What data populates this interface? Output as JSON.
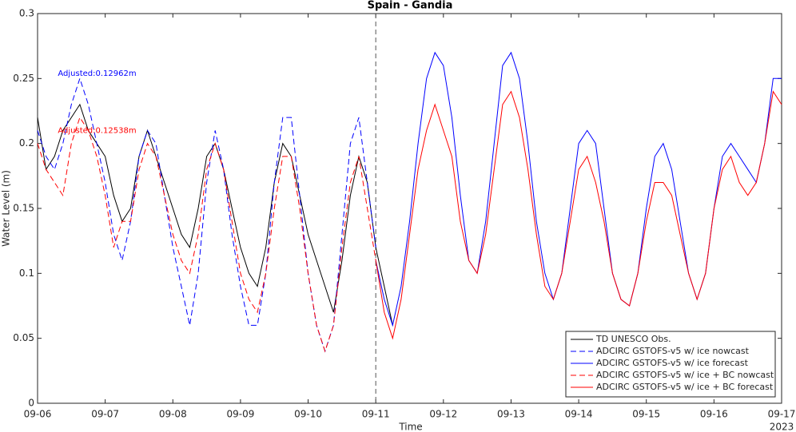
{
  "chart_data": {
    "type": "line",
    "title": "Spain - Gandia",
    "x_label": "Time",
    "y_label": "Water Level (m)",
    "x_year_label": "2023",
    "xlim": [
      0,
      11
    ],
    "ylim": [
      0,
      0.3
    ],
    "xticks": [
      {
        "value": 0,
        "label": "09-06"
      },
      {
        "value": 1,
        "label": "09-07"
      },
      {
        "value": 2,
        "label": "09-08"
      },
      {
        "value": 3,
        "label": "09-09"
      },
      {
        "value": 4,
        "label": "09-10"
      },
      {
        "value": 5,
        "label": "09-11"
      },
      {
        "value": 6,
        "label": "09-12"
      },
      {
        "value": 7,
        "label": "09-13"
      },
      {
        "value": 8,
        "label": "09-14"
      },
      {
        "value": 9,
        "label": "09-15"
      },
      {
        "value": 10,
        "label": "09-16"
      },
      {
        "value": 11,
        "label": "09-17"
      }
    ],
    "yticks": [
      0,
      0.05,
      0.1,
      0.15,
      0.2,
      0.25,
      0.3
    ],
    "grid": false,
    "legend": "lower right",
    "divider_x": 5,
    "annotations": [
      {
        "text": "Adjusted:0.12962m",
        "x": 0.3,
        "y": 0.254,
        "color": "#0000ff"
      },
      {
        "text": "Adjusted:0.12538m",
        "x": 0.3,
        "y": 0.21,
        "color": "#ff0000"
      }
    ],
    "series": [
      {
        "name": "TD UNESCO Obs.",
        "color": "#000000",
        "dash": false,
        "x": [
          0,
          0.125,
          0.25,
          0.375,
          0.5,
          0.625,
          0.75,
          0.875,
          1,
          1.125,
          1.25,
          1.375,
          1.5,
          1.625,
          1.75,
          1.875,
          2,
          2.125,
          2.25,
          2.375,
          2.5,
          2.625,
          2.75,
          2.875,
          3,
          3.125,
          3.25,
          3.375,
          3.5,
          3.625,
          3.75,
          3.875,
          4,
          4.125,
          4.25,
          4.375,
          4.5,
          4.625,
          4.75,
          4.875,
          5,
          5.125,
          5.25
        ],
        "values": [
          0.22,
          0.18,
          0.19,
          0.21,
          0.22,
          0.23,
          0.21,
          0.2,
          0.19,
          0.16,
          0.14,
          0.15,
          0.19,
          0.21,
          0.19,
          0.17,
          0.15,
          0.13,
          0.12,
          0.15,
          0.19,
          0.2,
          0.18,
          0.15,
          0.12,
          0.1,
          0.09,
          0.12,
          0.17,
          0.2,
          0.19,
          0.16,
          0.13,
          0.11,
          0.09,
          0.07,
          0.11,
          0.16,
          0.19,
          0.17,
          0.12,
          0.09,
          0.06
        ]
      },
      {
        "name": "ADCIRC GSTOFS-v5 w/ ice nowcast",
        "color": "#0000ff",
        "dash": true,
        "x": [
          0,
          0.125,
          0.25,
          0.375,
          0.5,
          0.625,
          0.75,
          0.875,
          1,
          1.125,
          1.25,
          1.375,
          1.5,
          1.625,
          1.75,
          1.875,
          2,
          2.125,
          2.25,
          2.375,
          2.5,
          2.625,
          2.75,
          2.875,
          3,
          3.125,
          3.25,
          3.375,
          3.5,
          3.625,
          3.75,
          3.875,
          4,
          4.125,
          4.25,
          4.375,
          4.5,
          4.625,
          4.75,
          4.875,
          5
        ],
        "values": [
          0.21,
          0.19,
          0.18,
          0.2,
          0.23,
          0.25,
          0.23,
          0.2,
          0.17,
          0.13,
          0.11,
          0.14,
          0.19,
          0.21,
          0.2,
          0.16,
          0.12,
          0.09,
          0.06,
          0.1,
          0.17,
          0.21,
          0.18,
          0.13,
          0.09,
          0.06,
          0.06,
          0.1,
          0.17,
          0.22,
          0.22,
          0.16,
          0.1,
          0.06,
          0.04,
          0.06,
          0.13,
          0.2,
          0.22,
          0.17,
          0.12
        ]
      },
      {
        "name": "ADCIRC GSTOFS-v5 w/ ice forecast",
        "color": "#0000ff",
        "dash": false,
        "x": [
          5,
          5.125,
          5.25,
          5.375,
          5.5,
          5.625,
          5.75,
          5.875,
          6,
          6.125,
          6.25,
          6.375,
          6.5,
          6.625,
          6.75,
          6.875,
          7,
          7.125,
          7.25,
          7.375,
          7.5,
          7.625,
          7.75,
          7.875,
          8,
          8.125,
          8.25,
          8.375,
          8.5,
          8.625,
          8.75,
          8.875,
          9,
          9.125,
          9.25,
          9.375,
          9.5,
          9.625,
          9.75,
          9.875,
          10,
          10.125,
          10.25,
          10.375,
          10.5,
          10.625,
          10.75,
          10.875,
          11
        ],
        "values": [
          0.11,
          0.08,
          0.06,
          0.09,
          0.14,
          0.2,
          0.25,
          0.27,
          0.26,
          0.22,
          0.16,
          0.11,
          0.1,
          0.14,
          0.2,
          0.26,
          0.27,
          0.25,
          0.2,
          0.14,
          0.1,
          0.08,
          0.1,
          0.15,
          0.2,
          0.21,
          0.2,
          0.15,
          0.1,
          0.08,
          0.075,
          0.1,
          0.15,
          0.19,
          0.2,
          0.18,
          0.14,
          0.1,
          0.08,
          0.1,
          0.15,
          0.19,
          0.2,
          0.19,
          0.18,
          0.17,
          0.2,
          0.25,
          0.25
        ]
      },
      {
        "name": "ADCIRC GSTOFS-v5 w/ ice + BC nowcast",
        "color": "#ff0000",
        "dash": true,
        "x": [
          0,
          0.125,
          0.25,
          0.375,
          0.5,
          0.625,
          0.75,
          0.875,
          1,
          1.125,
          1.25,
          1.375,
          1.5,
          1.625,
          1.75,
          1.875,
          2,
          2.125,
          2.25,
          2.375,
          2.5,
          2.625,
          2.75,
          2.875,
          3,
          3.125,
          3.25,
          3.375,
          3.5,
          3.625,
          3.75,
          3.875,
          4,
          4.125,
          4.25,
          4.375,
          4.5,
          4.625,
          4.75,
          4.875,
          5
        ],
        "values": [
          0.2,
          0.18,
          0.17,
          0.16,
          0.2,
          0.22,
          0.21,
          0.19,
          0.16,
          0.12,
          0.14,
          0.14,
          0.18,
          0.2,
          0.19,
          0.16,
          0.13,
          0.11,
          0.1,
          0.13,
          0.18,
          0.2,
          0.18,
          0.14,
          0.1,
          0.08,
          0.07,
          0.1,
          0.15,
          0.19,
          0.19,
          0.15,
          0.1,
          0.06,
          0.04,
          0.06,
          0.12,
          0.17,
          0.19,
          0.15,
          0.11
        ]
      },
      {
        "name": "ADCIRC GSTOFS-v5 w/ ice + BC forecast",
        "color": "#ff0000",
        "dash": false,
        "x": [
          5,
          5.125,
          5.25,
          5.375,
          5.5,
          5.625,
          5.75,
          5.875,
          6,
          6.125,
          6.25,
          6.375,
          6.5,
          6.625,
          6.75,
          6.875,
          7,
          7.125,
          7.25,
          7.375,
          7.5,
          7.625,
          7.75,
          7.875,
          8,
          8.125,
          8.25,
          8.375,
          8.5,
          8.625,
          8.75,
          8.875,
          9,
          9.125,
          9.25,
          9.375,
          9.5,
          9.625,
          9.75,
          9.875,
          10,
          10.125,
          10.25,
          10.375,
          10.5,
          10.625,
          10.75,
          10.875,
          11
        ],
        "values": [
          0.11,
          0.07,
          0.05,
          0.08,
          0.13,
          0.18,
          0.21,
          0.23,
          0.21,
          0.19,
          0.14,
          0.11,
          0.1,
          0.13,
          0.18,
          0.23,
          0.24,
          0.22,
          0.18,
          0.13,
          0.09,
          0.08,
          0.1,
          0.14,
          0.18,
          0.19,
          0.17,
          0.14,
          0.1,
          0.08,
          0.075,
          0.1,
          0.14,
          0.17,
          0.17,
          0.16,
          0.13,
          0.1,
          0.08,
          0.1,
          0.15,
          0.18,
          0.19,
          0.17,
          0.16,
          0.17,
          0.2,
          0.24,
          0.23
        ]
      }
    ]
  }
}
